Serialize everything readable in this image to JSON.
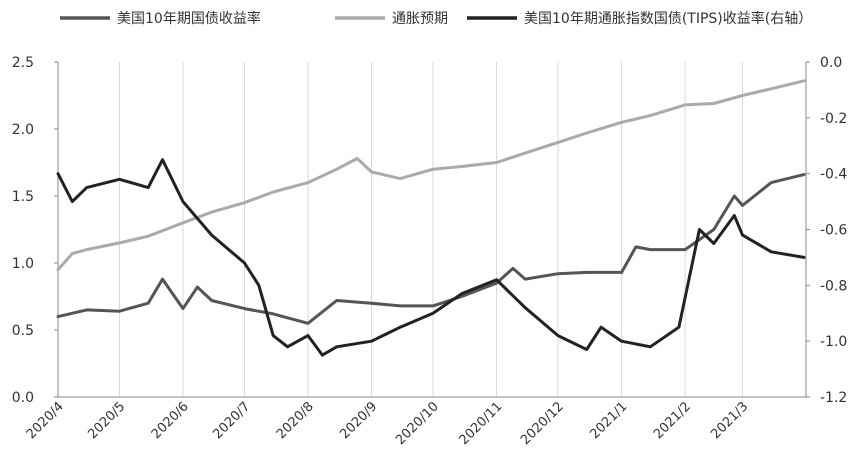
{
  "chart_data": {
    "type": "line",
    "title": "",
    "legend_position": "top",
    "legend": [
      "美国10年期国债收益率",
      "通胀预期",
      "美国10年期通胀指数国债(TIPS)收益率(右轴）"
    ],
    "x_ticks": [
      "2020/4",
      "2020/5",
      "2020/6",
      "2020/7",
      "2020/8",
      "2020/9",
      "2020/10",
      "2020/11",
      "2020/12",
      "2021/1",
      "2021/2",
      "2021/3"
    ],
    "y_left": {
      "min": 0,
      "max": 2.5,
      "ticks": [
        "0.0",
        "0.5",
        "1.0",
        "1.5",
        "2.0",
        "2.5"
      ]
    },
    "y_right": {
      "min": -1.2,
      "max": 0,
      "ticks": [
        "0.0",
        "-0.2",
        "-0.4",
        "-0.6",
        "-0.8",
        "-1.0",
        "-1.2"
      ]
    },
    "grid": "vertical-month-lines",
    "series": [
      {
        "name": "美国10年期国债收益率",
        "axis": "left",
        "color": "#555555",
        "x": [
          "2020-04-01",
          "2020-04-15",
          "2020-05-01",
          "2020-05-15",
          "2020-05-22",
          "2020-06-01",
          "2020-06-08",
          "2020-06-15",
          "2020-07-01",
          "2020-07-15",
          "2020-08-01",
          "2020-08-15",
          "2020-09-01",
          "2020-09-15",
          "2020-10-01",
          "2020-10-15",
          "2020-11-01",
          "2020-11-09",
          "2020-11-15",
          "2020-12-01",
          "2020-12-15",
          "2021-01-01",
          "2021-01-08",
          "2021-01-15",
          "2021-02-01",
          "2021-02-15",
          "2021-02-25",
          "2021-03-01",
          "2021-03-15",
          "2021-03-31"
        ],
        "values": [
          0.6,
          0.65,
          0.64,
          0.7,
          0.88,
          0.66,
          0.82,
          0.72,
          0.66,
          0.62,
          0.55,
          0.72,
          0.7,
          0.68,
          0.68,
          0.75,
          0.85,
          0.96,
          0.88,
          0.92,
          0.93,
          0.93,
          1.12,
          1.1,
          1.1,
          1.25,
          1.5,
          1.43,
          1.6,
          1.66
        ]
      },
      {
        "name": "通胀预期",
        "axis": "left",
        "color": "#aaaaaa",
        "x": [
          "2020-04-01",
          "2020-04-08",
          "2020-04-15",
          "2020-05-01",
          "2020-05-15",
          "2020-06-01",
          "2020-06-15",
          "2020-07-01",
          "2020-07-15",
          "2020-08-01",
          "2020-08-15",
          "2020-08-25",
          "2020-09-01",
          "2020-09-15",
          "2020-10-01",
          "2020-10-15",
          "2020-11-01",
          "2020-11-15",
          "2020-12-01",
          "2020-12-15",
          "2021-01-01",
          "2021-01-15",
          "2021-02-01",
          "2021-02-15",
          "2021-03-01",
          "2021-03-15",
          "2021-03-31"
        ],
        "values": [
          0.95,
          1.07,
          1.1,
          1.15,
          1.2,
          1.3,
          1.38,
          1.45,
          1.53,
          1.6,
          1.7,
          1.78,
          1.68,
          1.63,
          1.7,
          1.72,
          1.75,
          1.82,
          1.9,
          1.97,
          2.05,
          2.1,
          2.18,
          2.19,
          2.25,
          2.3,
          2.36
        ]
      },
      {
        "name": "美国10年期通胀指数国债(TIPS)收益率(右轴）",
        "axis": "right",
        "color": "#222222",
        "x": [
          "2020-04-01",
          "2020-04-08",
          "2020-04-15",
          "2020-05-01",
          "2020-05-15",
          "2020-05-22",
          "2020-06-01",
          "2020-06-15",
          "2020-07-01",
          "2020-07-08",
          "2020-07-15",
          "2020-07-22",
          "2020-08-01",
          "2020-08-08",
          "2020-08-15",
          "2020-09-01",
          "2020-09-15",
          "2020-10-01",
          "2020-10-15",
          "2020-11-01",
          "2020-11-15",
          "2020-12-01",
          "2020-12-15",
          "2020-12-22",
          "2021-01-01",
          "2021-01-15",
          "2021-01-29",
          "2021-02-08",
          "2021-02-15",
          "2021-02-25",
          "2021-03-01",
          "2021-03-15",
          "2021-03-31"
        ],
        "values": [
          -0.4,
          -0.5,
          -0.45,
          -0.42,
          -0.45,
          -0.35,
          -0.5,
          -0.62,
          -0.72,
          -0.8,
          -0.98,
          -1.02,
          -0.98,
          -1.05,
          -1.02,
          -1.0,
          -0.95,
          -0.9,
          -0.83,
          -0.78,
          -0.88,
          -0.98,
          -1.03,
          -0.95,
          -1.0,
          -1.02,
          -0.95,
          -0.6,
          -0.65,
          -0.55,
          -0.62,
          -0.68,
          -0.7
        ]
      }
    ]
  }
}
